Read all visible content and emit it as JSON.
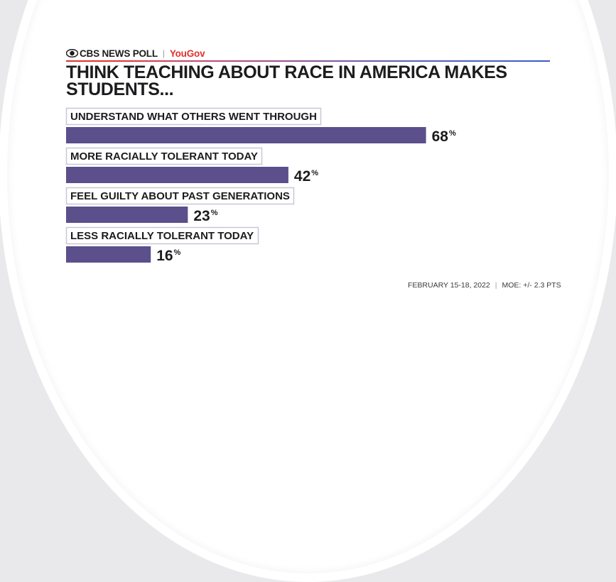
{
  "brand": {
    "name": "CBS NEWS POLL",
    "separator": "|",
    "partner": "YouGov"
  },
  "title": "THINK TEACHING ABOUT RACE IN AMERICA MAKES STUDENTS...",
  "footer": {
    "date": "FEBRUARY 15-18, 2022",
    "separator": "|",
    "moe": "MOE: +/- 2.3 PTS"
  },
  "colors": {
    "bar": "#5b4f8c",
    "label_border": "#c9c7d6",
    "accent": "#e0312c"
  },
  "chart_data": {
    "type": "bar",
    "orientation": "horizontal",
    "title": "THINK TEACHING ABOUT RACE IN AMERICA MAKES STUDENTS...",
    "categories": [
      "UNDERSTAND WHAT OTHERS WENT THROUGH",
      "MORE RACIALLY TOLERANT TODAY",
      "FEEL GUILTY ABOUT PAST GENERATIONS",
      "LESS RACIALLY TOLERANT TODAY"
    ],
    "values": [
      68,
      42,
      23,
      16
    ],
    "value_suffix": "%",
    "xlim": [
      0,
      100
    ],
    "grid": false,
    "legend": "none"
  }
}
